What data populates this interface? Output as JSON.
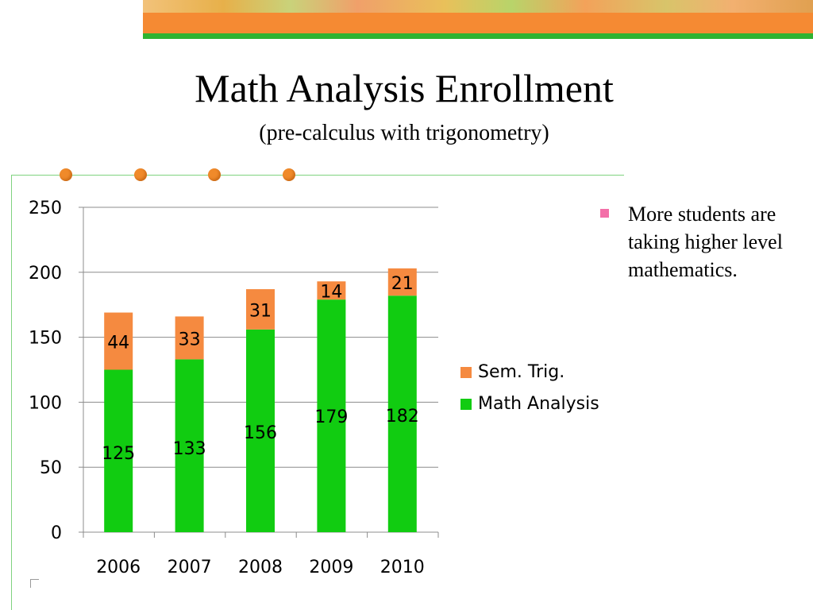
{
  "slide": {
    "title": "Math Analysis Enrollment",
    "subtitle": "(pre-calculus with trigonometry)",
    "bullet": "More students are taking higher level mathematics.",
    "colors": {
      "accent_orange": "#f58a33",
      "accent_green": "#2fb332",
      "bullet_pink": "#f36fa8"
    }
  },
  "chart_data": {
    "type": "bar",
    "stacked": true,
    "categories": [
      "2006",
      "2007",
      "2008",
      "2009",
      "2010"
    ],
    "series": [
      {
        "name": "Math Analysis",
        "values": [
          125,
          133,
          156,
          179,
          182
        ],
        "color": "#11cc11"
      },
      {
        "name": "Sem. Trig.",
        "values": [
          44,
          33,
          31,
          14,
          21
        ],
        "color": "#f58a40"
      }
    ],
    "ylim": [
      0,
      250
    ],
    "yticks": [
      0,
      50,
      100,
      150,
      200,
      250
    ],
    "grid": true,
    "legend": "right"
  }
}
